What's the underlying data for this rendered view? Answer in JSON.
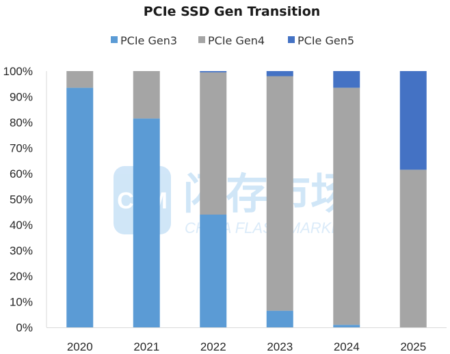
{
  "chart_data": {
    "type": "bar",
    "stacked": true,
    "title": "PCIe SSD Gen Transition",
    "xlabel": "",
    "ylabel": "",
    "categories": [
      "2020",
      "2021",
      "2022",
      "2023",
      "2024",
      "2025"
    ],
    "series": [
      {
        "name": "PCIe Gen3",
        "color": "#5b9bd5",
        "values": [
          93.5,
          81.5,
          44.0,
          6.5,
          1.0,
          0.0
        ]
      },
      {
        "name": "PCIe Gen4",
        "color": "#a5a5a5",
        "values": [
          6.5,
          18.5,
          55.5,
          91.5,
          92.5,
          61.5
        ]
      },
      {
        "name": "PCIe Gen5",
        "color": "#4472c4",
        "values": [
          0.0,
          0.0,
          0.5,
          2.0,
          6.5,
          38.5
        ]
      }
    ],
    "ylim": [
      0,
      100
    ],
    "yticks": [
      "0%",
      "10%",
      "20%",
      "30%",
      "40%",
      "50%",
      "60%",
      "70%",
      "80%",
      "90%",
      "100%"
    ],
    "grid": false,
    "legend_position": "top"
  },
  "watermark": {
    "logo": "CFM",
    "text": "闪存市场",
    "subtext": "CHINA FLASH MARKET"
  }
}
